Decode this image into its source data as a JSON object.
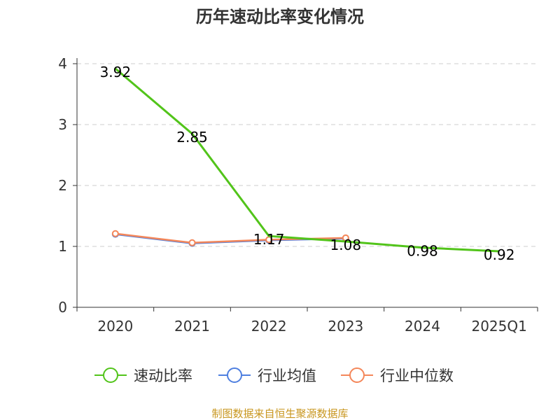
{
  "chart_data": {
    "type": "line",
    "title": "历年速动比率变化情况",
    "categories": [
      "2020",
      "2021",
      "2022",
      "2023",
      "2024",
      "2025Q1"
    ],
    "ylim": [
      0,
      4
    ],
    "yticks": [
      "0",
      "1",
      "2",
      "3",
      "4"
    ],
    "grid": true,
    "legend_position": "bottom",
    "series": [
      {
        "name": "速动比率",
        "color": "#52c41a",
        "values": [
          3.92,
          2.85,
          1.17,
          1.08,
          0.98,
          0.92
        ],
        "labels": [
          "3.92",
          "2.85",
          "1.17",
          "1.08",
          "0.98",
          "0.92"
        ]
      },
      {
        "name": "行业均值",
        "color": "#4e7fe0",
        "values": [
          1.2,
          1.05,
          1.1,
          1.13,
          null,
          null
        ]
      },
      {
        "name": "行业中位数",
        "color": "#f4875a",
        "values": [
          1.21,
          1.06,
          1.11,
          1.14,
          null,
          null
        ]
      }
    ]
  },
  "source": "制图数据来自恒生聚源数据库"
}
